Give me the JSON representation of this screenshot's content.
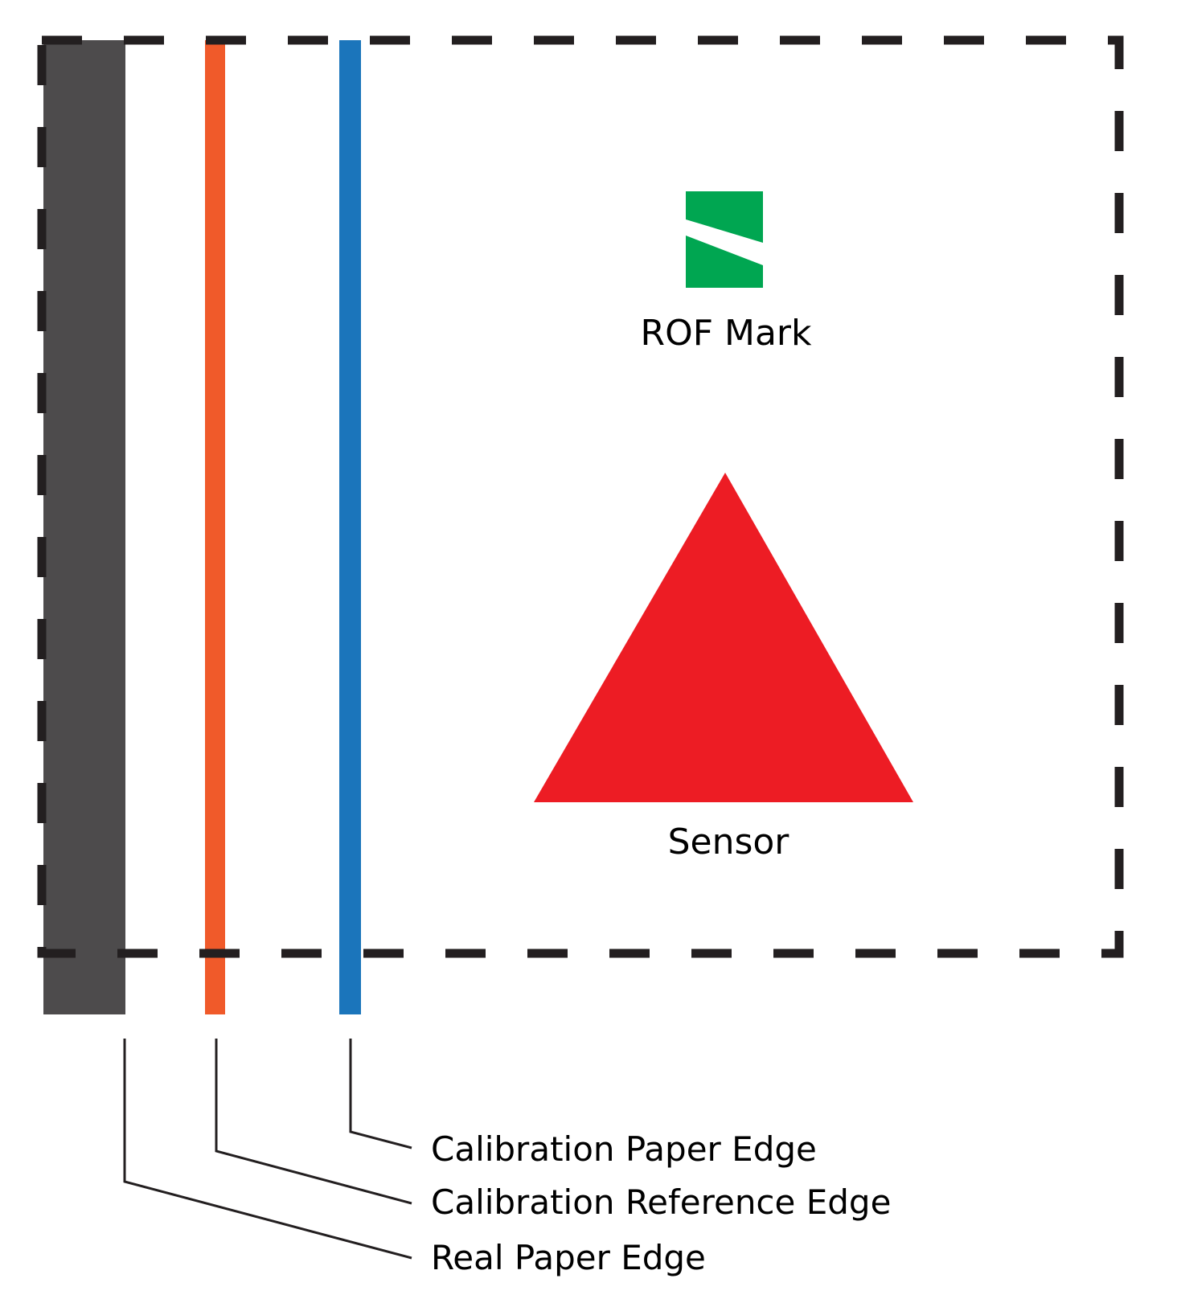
{
  "labels": {
    "rof_mark": "ROF Mark",
    "sensor": "Sensor",
    "calibration_paper_edge": "Calibration Paper Edge",
    "calibration_reference_edge": "Calibration Reference Edge",
    "real_paper_edge": "Real Paper Edge"
  },
  "colors": {
    "real_paper_edge": "#4d4b4c",
    "calibration_reference_edge": "#f05a2a",
    "calibration_paper_edge": "#1b75bb",
    "rof_mark": "#00a651",
    "sensor": "#ed1c24",
    "dashed_border": "#231f20",
    "leader_lines": "#231f20"
  }
}
